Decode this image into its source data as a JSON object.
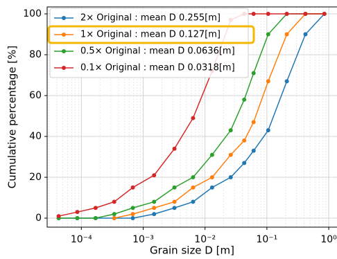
{
  "chart_data": {
    "type": "line",
    "xlabel": "Grain size D [m]",
    "ylabel": "Cumulative percentage [%]",
    "xscale": "log",
    "grid": true,
    "minor_grid": true,
    "legend": "upper left",
    "highlight_series": 1,
    "highlight_color": "#f5b800",
    "xlim": [
      2.8e-05,
      1.36
    ],
    "ylim": [
      -4.4,
      103.4
    ],
    "xticks": [
      {
        "value": 0.0001,
        "label": "10⁻⁴"
      },
      {
        "value": 0.001,
        "label": "10⁻³"
      },
      {
        "value": 0.01,
        "label": "10⁻²"
      },
      {
        "value": 0.1,
        "label": "10⁻¹"
      },
      {
        "value": 1,
        "label": "10⁰"
      }
    ],
    "yticks": [
      0,
      20,
      40,
      60,
      80,
      100
    ],
    "series": [
      {
        "name": "2× Original : mean D 0.255[m]",
        "color": "#1f77b4",
        "x": [
          4.3e-05,
          8.6e-05,
          0.00017,
          0.00034,
          0.00068,
          0.0015,
          0.0032,
          0.0064,
          0.013,
          0.026,
          0.043,
          0.061,
          0.105,
          0.21,
          0.42,
          0.85
        ],
        "values": [
          0,
          0,
          0,
          0,
          0,
          2,
          5,
          8,
          15,
          20,
          27,
          33,
          43,
          67,
          90,
          100
        ]
      },
      {
        "name": "1× Original : mean D 0.127[m]",
        "color": "#ff7f0e",
        "x": [
          0.00034,
          0.00068,
          0.0015,
          0.0032,
          0.0064,
          0.013,
          0.026,
          0.043,
          0.061,
          0.105,
          0.21,
          0.42,
          0.85
        ],
        "values": [
          0,
          2,
          5,
          8,
          15,
          20,
          31,
          38,
          47,
          67,
          90,
          100,
          100
        ]
      },
      {
        "name": "0.5× Original : mean D 0.0636[m]",
        "color": "#2ca02c",
        "x": [
          4.3e-05,
          8.6e-05,
          0.00017,
          0.00034,
          0.00068,
          0.0015,
          0.0032,
          0.0064,
          0.013,
          0.026,
          0.043,
          0.061,
          0.105,
          0.21,
          0.42,
          0.85
        ],
        "values": [
          0,
          0,
          0,
          2,
          5,
          8,
          15,
          20,
          31,
          43,
          58,
          71,
          90,
          100,
          100,
          100
        ]
      },
      {
        "name": "0.1× Original : mean D 0.0318[m]",
        "color": "#d62728",
        "x": [
          4.3e-05,
          8.6e-05,
          0.00017,
          0.00034,
          0.00068,
          0.0015,
          0.0032,
          0.0064,
          0.013,
          0.026,
          0.043,
          0.061,
          0.105,
          0.21,
          0.42,
          0.85
        ],
        "values": [
          1,
          3,
          5,
          8,
          15,
          21,
          34,
          49,
          72,
          97,
          100,
          100,
          100,
          100,
          100,
          100
        ]
      }
    ]
  }
}
